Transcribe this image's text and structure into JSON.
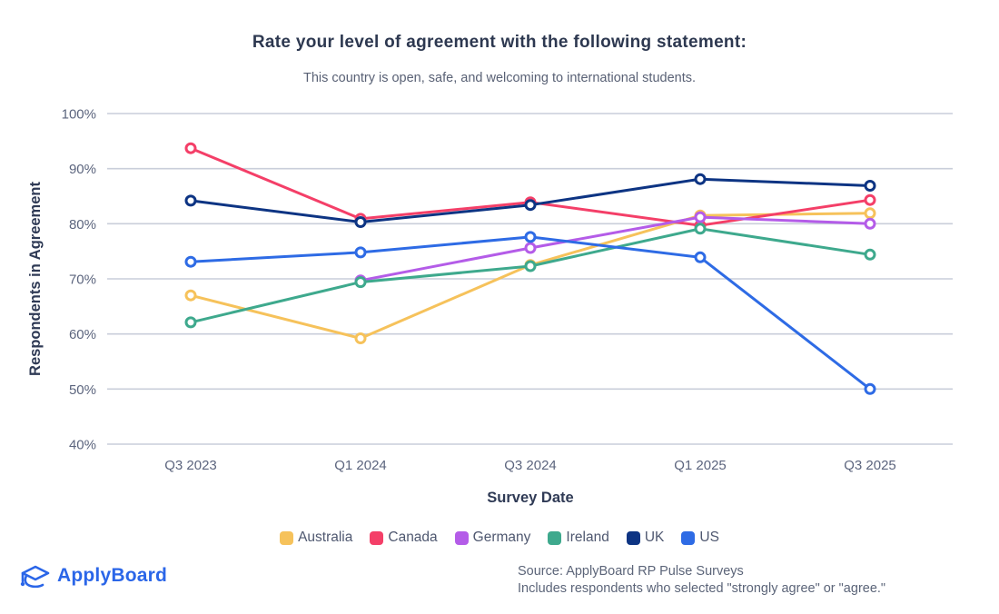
{
  "chart_data": {
    "type": "line",
    "title": "Rate your level of agreement with the following statement:",
    "subtitle": "This country is open, safe, and welcoming to international students.",
    "xlabel": "Survey Date",
    "ylabel": "Respondents in Agreement",
    "categories": [
      "Q3 2023",
      "Q1 2024",
      "Q3 2024",
      "Q1 2025",
      "Q3 2025"
    ],
    "y_ticks": [
      "100%",
      "90%",
      "80%",
      "70%",
      "60%",
      "50%",
      "40%"
    ],
    "ylim": [
      40,
      100
    ],
    "grid": "horizontal",
    "legend_position": "bottom",
    "marker_style": "open-circle",
    "series": [
      {
        "name": "Australia",
        "color": "#F6C25B",
        "values": [
          67.0,
          59.2,
          72.5,
          81.5,
          81.9
        ]
      },
      {
        "name": "Canada",
        "color": "#F43F68",
        "values": [
          93.7,
          80.9,
          83.9,
          79.7,
          84.3
        ]
      },
      {
        "name": "Germany",
        "color": "#B45CE8",
        "values": [
          null,
          69.7,
          75.6,
          81.2,
          80.0
        ]
      },
      {
        "name": "Ireland",
        "color": "#3EA98D",
        "values": [
          62.1,
          69.4,
          72.3,
          79.1,
          74.4
        ]
      },
      {
        "name": "UK",
        "color": "#0D3483",
        "values": [
          84.2,
          80.3,
          83.4,
          88.1,
          86.9
        ]
      },
      {
        "name": "US",
        "color": "#2E6BE5",
        "values": [
          73.1,
          74.8,
          77.6,
          73.9,
          50.0
        ]
      }
    ]
  },
  "colors": {
    "title": "#2D3850",
    "subtitle": "#596175",
    "tick_label": "#5C657E",
    "axis_label": "#2F3A55",
    "grid": "#C9CEDA",
    "legend_label": "#4F5870",
    "brand": "#2B66E8",
    "source_text": "#5C6579"
  },
  "footer": {
    "brand": "ApplyBoard",
    "source_line1": "Source: ApplyBoard RP Pulse Surveys",
    "source_line2": "Includes respondents who selected \"strongly agree\" or \"agree.\""
  }
}
